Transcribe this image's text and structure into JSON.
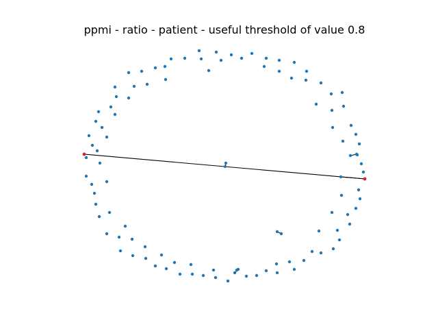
{
  "figure": {
    "title": "ppmi - ratio - patient - useful threshold of value 0.8"
  },
  "colors": {
    "node": "#1f77b4",
    "highlight_node": "#d62728",
    "edge": "#000000",
    "background": "#ffffff"
  },
  "chart_data": {
    "type": "network-graph",
    "layout": "circular",
    "title": "ppmi - ratio - patient - useful threshold of value 0.8",
    "node_count": 110,
    "highlighted_nodes": 2,
    "edges_visible": 6
  }
}
